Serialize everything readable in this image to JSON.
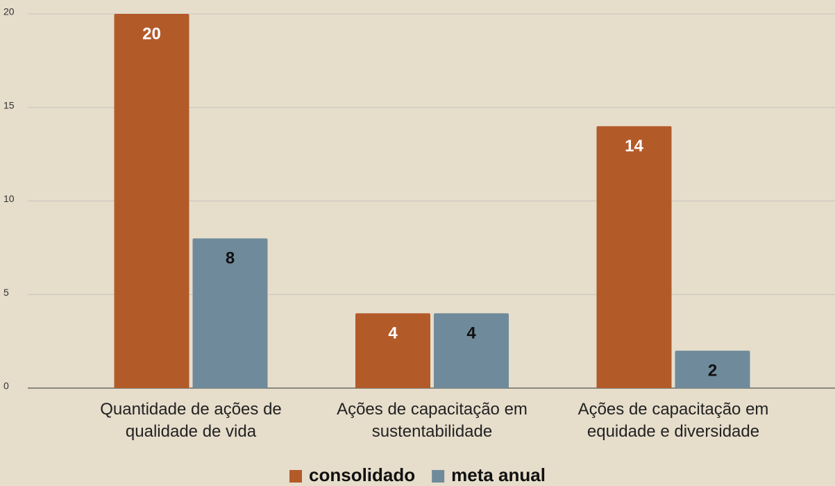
{
  "chart_data": {
    "type": "bar",
    "categories": [
      "Quantidade de ações de qualidade de vida",
      "Ações de capacitação em sustentabilidade",
      "Ações de capacitação em equidade e diversidade"
    ],
    "series": [
      {
        "name": "consolidado",
        "color": "#b35a29",
        "values": [
          20,
          4,
          14
        ]
      },
      {
        "name": "meta anual",
        "color": "#6f8b9b",
        "values": [
          8,
          4,
          2
        ]
      }
    ],
    "ylim": [
      0,
      20
    ],
    "yticks": [
      0,
      5,
      10,
      15,
      20
    ],
    "grid": true,
    "legend": "bottom"
  }
}
